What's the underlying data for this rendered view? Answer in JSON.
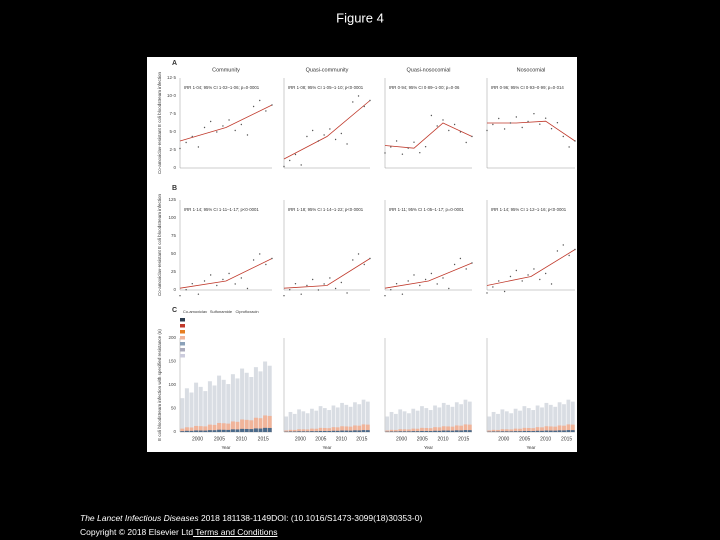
{
  "slide_title": "Figure 4",
  "figure": {
    "panels": [
      "A",
      "B",
      "C"
    ],
    "columns": [
      "Community",
      "Quasi-community",
      "Quasi-nosocomial",
      "Nosocomial"
    ],
    "y_labels": [
      "Co-amoxiclav-resistant E coli bloodstream infection",
      "Co-amoxiclav-resistant E coli bloodstream infection",
      "E coli bloodstream infection with specified resistance (n)"
    ],
    "y_ticks_a": [
      "0",
      "2·5",
      "5·0",
      "7·5",
      "10·0",
      "12·5"
    ],
    "y_ticks_b": [
      "0",
      "25",
      "50",
      "75",
      "100",
      "125"
    ],
    "y_ticks_c": [
      "0",
      "50",
      "100",
      "150",
      "200"
    ],
    "irr_a": [
      "IRR 1·04; 95% CI 1·02–1·06; p=0·0001",
      "IRR 1·08; 95% CI 1·05–1·10; p<0·0001",
      "IRR 0·94; 95% CI 0·89–1·00; p=0·06",
      "IRR 0·96; 95% CI 0·93–0·99; p=0·014"
    ],
    "irr_b": [
      "IRR 1·14; 95% CI 1·11–1·17; p<0·0001",
      "IRR 1·18; 95% CI 1·14–1·22; p<0·0001",
      "IRR 1·11; 95% CI 1·05–1·17; p=0·0001",
      "IRR 1·14; 95% CI 1·12–1·16; p<0·0001"
    ],
    "legend": [
      "Co-amoxiclav",
      "Sulfonamide",
      "Ciprofloxacin"
    ],
    "x_ticks": [
      "2000",
      "2005",
      "2010",
      "2015"
    ],
    "x_label": "Year"
  },
  "citation": {
    "journal": "The Lancet Infectious Diseases",
    "details": " 2018 181138-1149DOI: (10.1016/S1473-3099(18)30353-0)",
    "copyright": "Copyright © 2018 Elsevier Ltd",
    "link": " Terms and Conditions"
  }
}
